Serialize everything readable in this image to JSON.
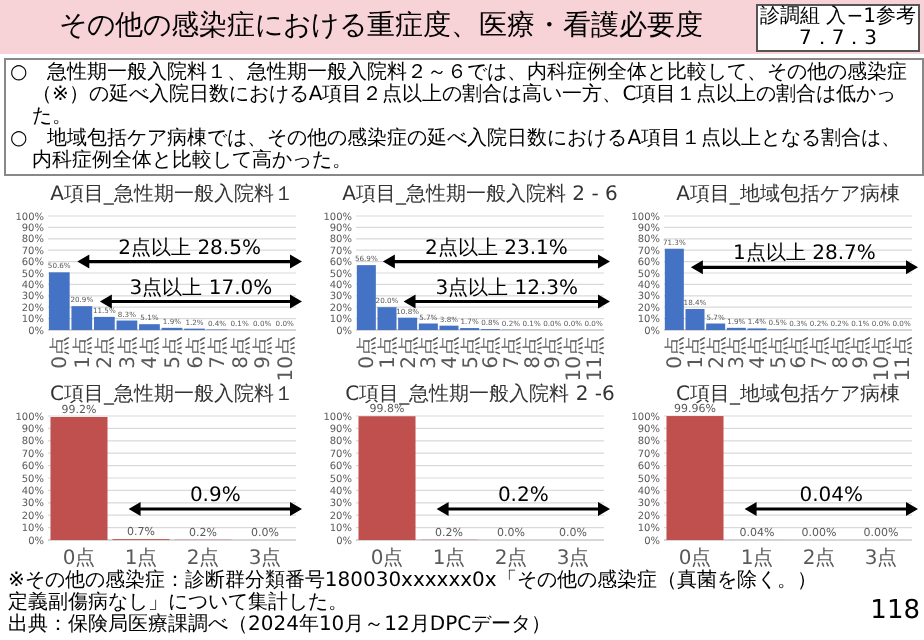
{
  "chart_data": [
    {
      "type": "other",
      "title": "その他の感染症における重症度、医療・看護必要度",
      "annotations": [
        "診調組 入−1参考",
        "7．7．3",
        "○　急性期一般入院料１、急性期一般入院料２～６では、内科症例全体と比較して、その他の感染症（※）の延べ入院日数におけるA項目２点以上の割合は高い一方、C項目１点以上の割合は低かった。",
        "○　地域包括ケア病棟では、その他の感染症の延べ入院日数におけるA項目１点以上となる割合は、内科症例全体と比較して高かった。",
        "※その他の感染症：診断群分類番号180030xxxxxx0x「その他の感染症（真菌を除く。）定義副傷病なし」について集計した。",
        "出典：保険局医療課調べ（2024年10月～12月DPCデータ）",
        "118"
      ]
    },
    {
      "type": "bar",
      "title": "A項目_急性期一般入院料１",
      "categories": [
        "0点",
        "1点",
        "2点",
        "3点",
        "4点",
        "5点",
        "6点",
        "7点",
        "8点",
        "9点",
        "10点"
      ],
      "values": [
        50.6,
        20.9,
        11.5,
        8.3,
        5.1,
        1.9,
        1.2,
        0.4,
        0.1,
        0.0,
        0.0
      ],
      "value_labels": [
        "50.6%",
        "20.9%",
        "11.5%",
        "8.3%",
        "5.1%",
        "1.9%",
        "1.2%",
        "0.4%",
        "0.1%",
        "0.0%",
        "0.0%"
      ],
      "color": "#4472c4",
      "ylim": [
        0,
        100
      ],
      "yticks": [
        {
          "value": 0,
          "label": "0%"
        },
        {
          "value": 10,
          "label": "10%"
        },
        {
          "value": 20,
          "label": "20%"
        },
        {
          "value": 30,
          "label": "30%"
        },
        {
          "value": 40,
          "label": "40%"
        },
        {
          "value": 50,
          "label": "50%"
        },
        {
          "value": 60,
          "label": "60%"
        },
        {
          "value": 70,
          "label": "70%"
        },
        {
          "value": 80,
          "label": "80%"
        },
        {
          "value": 90,
          "label": "90%"
        },
        {
          "value": 100,
          "label": "100%"
        }
      ],
      "grid": "y",
      "annotations": [
        "2点以上 28.5%",
        "3点以上 17.0%"
      ]
    },
    {
      "type": "bar",
      "title": "A項目_急性期一般入院料 2 - 6",
      "categories": [
        "0点",
        "1点",
        "2点",
        "3点",
        "4点",
        "5点",
        "6点",
        "7点",
        "8点",
        "9点",
        "10点",
        "11点"
      ],
      "values": [
        56.9,
        20.0,
        10.8,
        5.7,
        3.8,
        1.7,
        0.8,
        0.2,
        0.1,
        0.0,
        0.0,
        0.0
      ],
      "value_labels": [
        "56.9%",
        "20.0%",
        "10.8%",
        "5.7%",
        "3.8%",
        "1.7%",
        "0.8%",
        "0.2%",
        "0.1%",
        "0.0%",
        "0.0%",
        "0.0%"
      ],
      "color": "#4472c4",
      "ylim": [
        0,
        100
      ],
      "yticks": [
        {
          "value": 0,
          "label": "0%"
        },
        {
          "value": 10,
          "label": "10%"
        },
        {
          "value": 20,
          "label": "20%"
        },
        {
          "value": 30,
          "label": "30%"
        },
        {
          "value": 40,
          "label": "40%"
        },
        {
          "value": 50,
          "label": "50%"
        },
        {
          "value": 60,
          "label": "60%"
        },
        {
          "value": 70,
          "label": "70%"
        },
        {
          "value": 80,
          "label": "80%"
        },
        {
          "value": 90,
          "label": "90%"
        },
        {
          "value": 100,
          "label": "100%"
        }
      ],
      "grid": "y",
      "annotations": [
        "2点以上 23.1%",
        "3点以上 12.3%"
      ]
    },
    {
      "type": "bar",
      "title": "A項目_地域包括ケア病棟",
      "categories": [
        "0点",
        "1点",
        "2点",
        "3点",
        "4点",
        "5点",
        "6点",
        "7点",
        "8点",
        "9点",
        "10点",
        "11点"
      ],
      "values": [
        71.3,
        18.4,
        5.7,
        1.9,
        1.4,
        0.5,
        0.3,
        0.2,
        0.2,
        0.1,
        0.0,
        0.0
      ],
      "value_labels": [
        "71.3%",
        "18.4%",
        "5.7%",
        "1.9%",
        "1.4%",
        "0.5%",
        "0.3%",
        "0.2%",
        "0.2%",
        "0.1%",
        "0.0%",
        "0.0%"
      ],
      "color": "#4472c4",
      "ylim": [
        0,
        100
      ],
      "yticks": [
        {
          "value": 0,
          "label": "0%"
        },
        {
          "value": 10,
          "label": "10%"
        },
        {
          "value": 20,
          "label": "20%"
        },
        {
          "value": 30,
          "label": "30%"
        },
        {
          "value": 40,
          "label": "40%"
        },
        {
          "value": 50,
          "label": "50%"
        },
        {
          "value": 60,
          "label": "60%"
        },
        {
          "value": 70,
          "label": "70%"
        },
        {
          "value": 80,
          "label": "80%"
        },
        {
          "value": 90,
          "label": "90%"
        },
        {
          "value": 100,
          "label": "100%"
        }
      ],
      "grid": "y",
      "annotations": [
        "1点以上 28.7%"
      ]
    },
    {
      "type": "bar",
      "title": "C項目_急性期一般入院料１",
      "categories": [
        "0点",
        "1点",
        "2点",
        "3点"
      ],
      "values": [
        99.2,
        0.7,
        0.2,
        0.0
      ],
      "value_labels": [
        "99.2%",
        "0.7%",
        "0.2%",
        "0.0%"
      ],
      "color": "#c0504d",
      "ylim": [
        0,
        100
      ],
      "yticks": [
        {
          "value": 0,
          "label": "0%"
        },
        {
          "value": 10,
          "label": "10%"
        },
        {
          "value": 20,
          "label": "20%"
        },
        {
          "value": 30,
          "label": "30%"
        },
        {
          "value": 40,
          "label": "40%"
        },
        {
          "value": 50,
          "label": "50%"
        },
        {
          "value": 60,
          "label": "60%"
        },
        {
          "value": 70,
          "label": "70%"
        },
        {
          "value": 80,
          "label": "80%"
        },
        {
          "value": 90,
          "label": "90%"
        },
        {
          "value": 100,
          "label": "100%"
        }
      ],
      "grid": "y",
      "annotations": [
        "0.9%"
      ]
    },
    {
      "type": "bar",
      "title": "C項目_急性期一般入院料 2 -6",
      "categories": [
        "0点",
        "1点",
        "2点",
        "3点"
      ],
      "values": [
        99.8,
        0.2,
        0.0,
        0.0
      ],
      "value_labels": [
        "99.8%",
        "0.2%",
        "0.0%",
        "0.0%"
      ],
      "color": "#c0504d",
      "ylim": [
        0,
        100
      ],
      "yticks": [
        {
          "value": 0,
          "label": "0%"
        },
        {
          "value": 10,
          "label": "10%"
        },
        {
          "value": 20,
          "label": "20%"
        },
        {
          "value": 30,
          "label": "30%"
        },
        {
          "value": 40,
          "label": "40%"
        },
        {
          "value": 50,
          "label": "50%"
        },
        {
          "value": 60,
          "label": "60%"
        },
        {
          "value": 70,
          "label": "70%"
        },
        {
          "value": 80,
          "label": "80%"
        },
        {
          "value": 90,
          "label": "90%"
        },
        {
          "value": 100,
          "label": "100%"
        }
      ],
      "grid": "y",
      "annotations": [
        "0.2%"
      ]
    },
    {
      "type": "bar",
      "title": "C項目_地域包括ケア病棟",
      "categories": [
        "0点",
        "1点",
        "2点",
        "3点"
      ],
      "values": [
        99.96,
        0.04,
        0.0,
        0.0
      ],
      "value_labels": [
        "99.96%",
        "0.04%",
        "0.00%",
        "0.00%"
      ],
      "color": "#c0504d",
      "ylim": [
        0,
        100
      ],
      "yticks": [
        {
          "value": 0,
          "label": "0%"
        },
        {
          "value": 10,
          "label": "10%"
        },
        {
          "value": 20,
          "label": "20%"
        },
        {
          "value": 30,
          "label": "30%"
        },
        {
          "value": 40,
          "label": "40%"
        },
        {
          "value": 50,
          "label": "50%"
        },
        {
          "value": 60,
          "label": "60%"
        },
        {
          "value": 70,
          "label": "70%"
        },
        {
          "value": 80,
          "label": "80%"
        },
        {
          "value": 90,
          "label": "90%"
        },
        {
          "value": 100,
          "label": "100%"
        }
      ],
      "grid": "y",
      "annotations": [
        "0.04%"
      ]
    }
  ]
}
